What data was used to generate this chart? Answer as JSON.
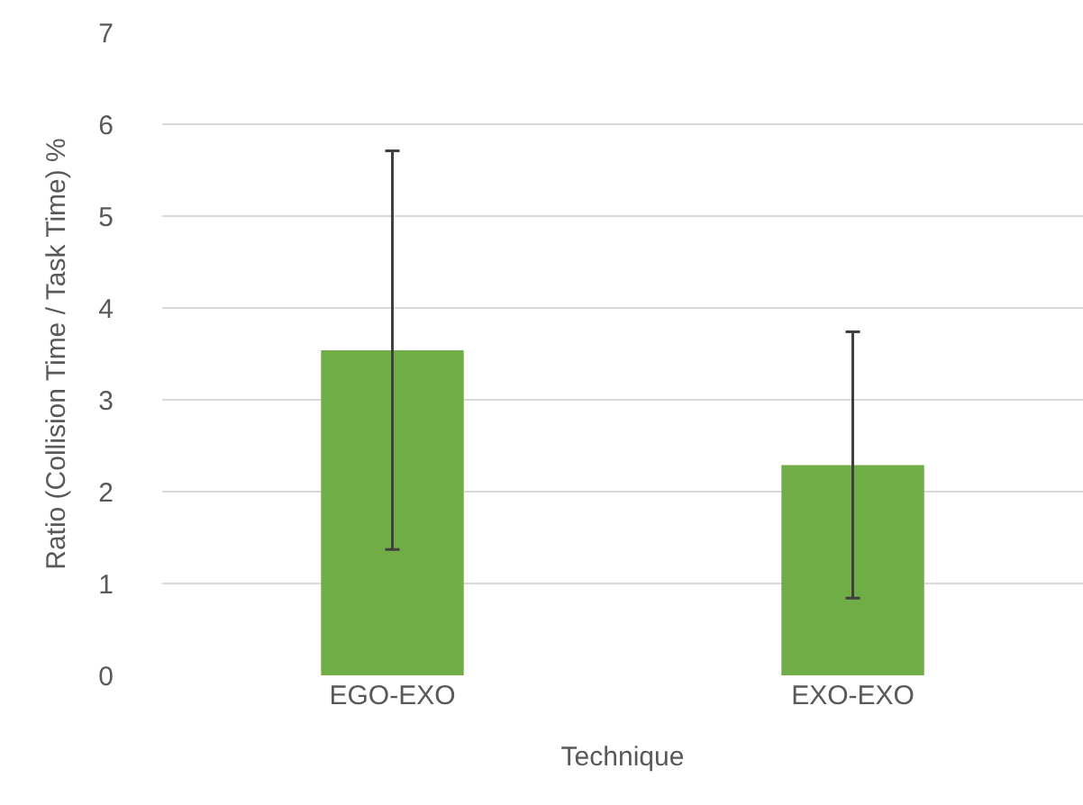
{
  "chart_data": {
    "type": "bar",
    "xlabel": "Technique",
    "ylabel": "Ratio (Collision Time / Task Time) %",
    "categories": [
      "EGO-EXO",
      "EXO-EXO"
    ],
    "values": [
      3.54,
      2.29
    ],
    "errors": [
      2.17,
      1.45
    ],
    "color": "#70ad47",
    "ylim": [
      0,
      7
    ],
    "yticks": [
      0,
      1,
      2,
      3,
      4,
      5,
      6,
      7
    ],
    "grid": "y"
  }
}
